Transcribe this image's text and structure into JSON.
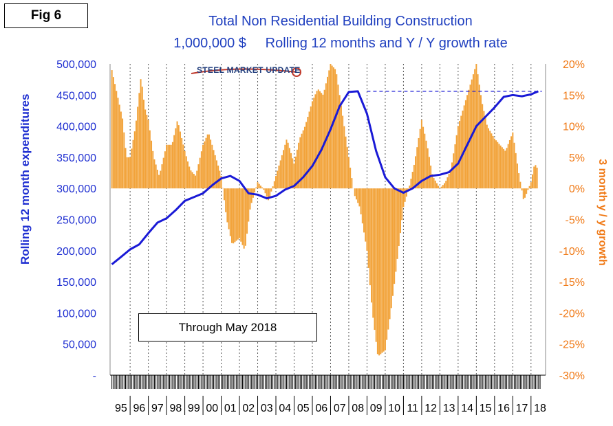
{
  "figure_label": "Fig 6",
  "note": "Through May 2018",
  "logo_text": "STEEL MARKET UPDATE",
  "chart_data": {
    "type": "bar+line",
    "title": "Total Non Residential Building Construction",
    "subtitle": "1,000,000 $     Rolling 12 months and Y / Y growth rate",
    "ylabel_left": "Rolling 12 month expenditures",
    "ylabel_right": "3 month y / y growth",
    "ylim_left": [
      0,
      500000
    ],
    "ylim_right": [
      -30,
      20
    ],
    "left_ticks": [
      "-",
      "50,000",
      "100,000",
      "150,000",
      "200,000",
      "250,000",
      "300,000",
      "350,000",
      "400,000",
      "450,000",
      "500,000"
    ],
    "right_ticks": [
      "-30%",
      "-25%",
      "-20%",
      "-15%",
      "-10%",
      "-5%",
      "0%",
      "5%",
      "10%",
      "15%",
      "20%"
    ],
    "categories": [
      "95",
      "96",
      "97",
      "98",
      "99",
      "00",
      "01",
      "02",
      "03",
      "04",
      "05",
      "06",
      "07",
      "08",
      "09",
      "10",
      "11",
      "12",
      "13",
      "14",
      "15",
      "16",
      "17",
      "18"
    ],
    "series": [
      {
        "name": "Rolling 12 month expenditures",
        "axis": "left",
        "type": "line",
        "color": "#1a1ad6",
        "x": [
          1995.0,
          1995.5,
          1996.0,
          1996.5,
          1997.0,
          1997.5,
          1998.0,
          1998.5,
          1999.0,
          1999.5,
          2000.0,
          2000.5,
          2001.0,
          2001.5,
          2002.0,
          2002.5,
          2003.0,
          2003.5,
          2004.0,
          2004.5,
          2005.0,
          2005.5,
          2006.0,
          2006.5,
          2007.0,
          2007.5,
          2008.0,
          2008.5,
          2009.0,
          2009.5,
          2010.0,
          2010.5,
          2011.0,
          2011.5,
          2012.0,
          2012.5,
          2013.0,
          2013.5,
          2014.0,
          2014.5,
          2015.0,
          2015.5,
          2016.0,
          2016.5,
          2017.0,
          2017.5,
          2018.0,
          2018.4
        ],
        "values": [
          178000,
          190000,
          202000,
          210000,
          228000,
          245000,
          252000,
          265000,
          280000,
          286000,
          292000,
          305000,
          316000,
          320000,
          312000,
          292000,
          290000,
          284000,
          288000,
          298000,
          304000,
          318000,
          336000,
          362000,
          395000,
          432000,
          455000,
          456000,
          420000,
          360000,
          318000,
          300000,
          293000,
          300000,
          312000,
          320000,
          322000,
          326000,
          340000,
          370000,
          400000,
          415000,
          430000,
          447000,
          450000,
          448000,
          451000,
          456000
        ]
      },
      {
        "name": "3 month y / y growth",
        "axis": "right",
        "type": "bar",
        "color": "#f2a33a",
        "x": [
          1995.0,
          1995.3,
          1995.6,
          1995.8,
          1996.0,
          1996.3,
          1996.6,
          1996.8,
          1997.0,
          1997.3,
          1997.6,
          1998.0,
          1998.3,
          1998.6,
          1999.0,
          1999.3,
          1999.6,
          2000.0,
          2000.3,
          2000.6,
          2001.0,
          2001.3,
          2001.6,
          2002.0,
          2002.3,
          2002.6,
          2003.0,
          2003.3,
          2003.6,
          2004.0,
          2004.3,
          2004.6,
          2005.0,
          2005.3,
          2005.6,
          2006.0,
          2006.3,
          2006.6,
          2007.0,
          2007.3,
          2007.6,
          2008.0,
          2008.3,
          2008.6,
          2009.0,
          2009.3,
          2009.6,
          2010.0,
          2010.3,
          2010.6,
          2011.0,
          2011.3,
          2011.6,
          2012.0,
          2012.3,
          2012.6,
          2013.0,
          2013.3,
          2013.6,
          2014.0,
          2014.3,
          2014.6,
          2015.0,
          2015.3,
          2015.6,
          2016.0,
          2016.3,
          2016.6,
          2017.0,
          2017.3,
          2017.6,
          2018.0,
          2018.2,
          2018.4
        ],
        "values": [
          19,
          15,
          11,
          5,
          5,
          10,
          18,
          13,
          11,
          5,
          2,
          7,
          7,
          11,
          6,
          3,
          2,
          7,
          9,
          6,
          2,
          -5,
          -9,
          -8,
          -10,
          -3,
          1,
          0,
          -2,
          2,
          5,
          8,
          4,
          8,
          10,
          14,
          16,
          15,
          20,
          19,
          13,
          5,
          -1,
          -3,
          -10,
          -20,
          -27,
          -26,
          -20,
          -13,
          -3,
          0,
          4,
          11,
          7,
          2,
          0,
          1,
          3,
          10,
          13,
          16,
          20,
          14,
          10,
          8,
          7,
          6,
          9,
          3,
          -2,
          1,
          4,
          3
        ]
      },
      {
        "name": "Reference line",
        "axis": "left",
        "type": "line",
        "style": "dashed",
        "color": "#1a1ad6",
        "x": [
          2009.0,
          2018.6
        ],
        "values": [
          456000,
          456000
        ]
      }
    ]
  }
}
